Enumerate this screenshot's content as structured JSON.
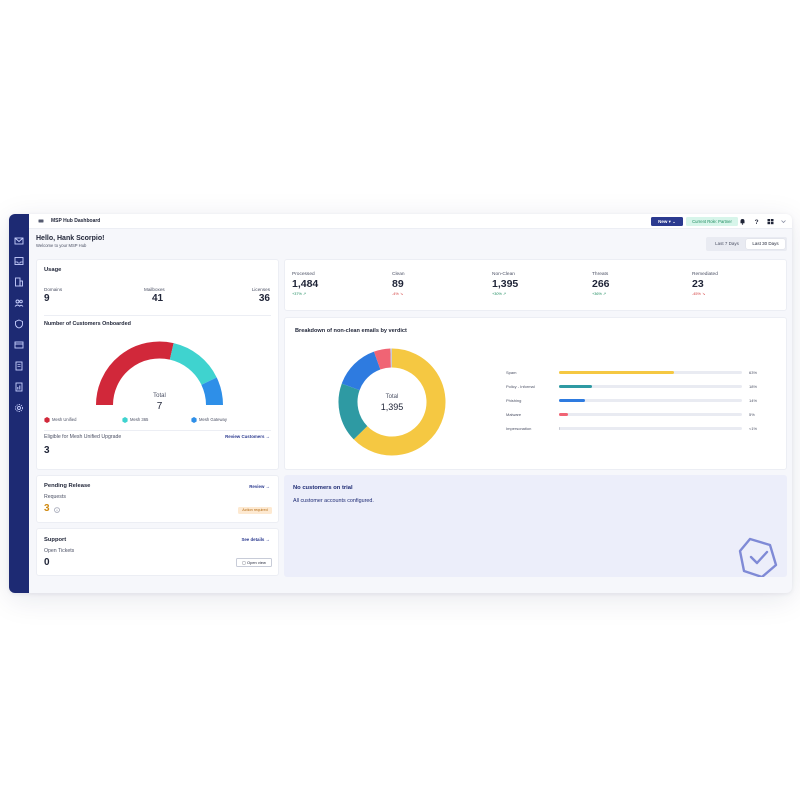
{
  "header": {
    "title": "MSP Hub Dashboard",
    "new_label": "New",
    "role_label": "Current Role: Partner",
    "home_icon": "home-icon",
    "bell_icon": "bell-icon",
    "help_icon": "help-icon",
    "apps_icon": "apps-icon"
  },
  "sidebar": {
    "icons": [
      "mail-icon",
      "inbox-icon",
      "building-icon",
      "users-icon",
      "shield-icon",
      "card-icon",
      "document-icon",
      "report-icon",
      "gear-icon"
    ]
  },
  "greeting": {
    "title": "Hello, Hank Scorpio!",
    "subtitle": "Welcome to your MSP Hub"
  },
  "date_range": {
    "options": [
      "Last 7 Days",
      "Last 30 Days"
    ],
    "selected": "Last 30 Days"
  },
  "usage": {
    "title": "Usage",
    "items": [
      {
        "label": "Domains",
        "value": "9"
      },
      {
        "label": "Mailboxes",
        "value": "41"
      },
      {
        "label": "Licenses",
        "value": "36"
      }
    ]
  },
  "onboarded": {
    "title": "Number of Customers Onboarded",
    "total_label": "Total",
    "total_value": "7",
    "legend": [
      {
        "name": "Mesh Unified",
        "color": "#d1283a"
      },
      {
        "name": "Mesh 365",
        "color": "#3fd3cf"
      },
      {
        "name": "Mesh Gateway",
        "color": "#2e8fe8"
      }
    ],
    "eligible_label": "Eligible for Mesh Unified Upgrade",
    "eligible_value": "3",
    "review_link": "Review Customers →"
  },
  "pending": {
    "title": "Pending Release",
    "review_link": "Review →",
    "requests_label": "Requests",
    "requests_value": "3",
    "badge": "Action required"
  },
  "support": {
    "title": "Support",
    "details_link": "See details →",
    "tickets_label": "Open Tickets",
    "tickets_value": "0",
    "open_view": "Open view"
  },
  "stats": [
    {
      "label": "Processed",
      "value": "1,484",
      "delta": "+37%",
      "dir": "up"
    },
    {
      "label": "Clean",
      "value": "89",
      "delta": "-4%",
      "dir": "down"
    },
    {
      "label": "Non-Clean",
      "value": "1,395",
      "delta": "+30%",
      "dir": "up"
    },
    {
      "label": "Threats",
      "value": "266",
      "delta": "+36%",
      "dir": "up"
    },
    {
      "label": "Remediated",
      "value": "23",
      "delta": "-45%",
      "dir": "down"
    }
  ],
  "breakdown": {
    "title": "Breakdown of non-clean emails by verdict",
    "total_label": "Total",
    "total_value": "1,395"
  },
  "trial": {
    "title": "No customers on trial",
    "subtitle": "All customer accounts configured."
  },
  "chart_data": [
    {
      "type": "pie",
      "title": "Number of Customers Onboarded",
      "categories": [
        "Mesh Unified",
        "Mesh 365",
        "Mesh Gateway"
      ],
      "values": [
        4,
        2,
        1
      ],
      "colors": [
        "#d1283a",
        "#3fd3cf",
        "#2e8fe8"
      ]
    },
    {
      "type": "pie",
      "title": "Breakdown of non-clean emails by verdict",
      "categories": [
        "Spam",
        "Policy - Informal",
        "Phishing",
        "Malware",
        "Impersonation"
      ],
      "values": [
        63,
        18,
        14,
        5,
        0.5
      ],
      "colors": [
        "#f5c842",
        "#2e9aa3",
        "#2e7be0",
        "#f06474",
        "#c9ccd6"
      ]
    },
    {
      "type": "bar",
      "categories": [
        "Spam",
        "Policy - Informal",
        "Phishing",
        "Malware",
        "Impersonation"
      ],
      "values": [
        63,
        18,
        14,
        5,
        0.5
      ],
      "labels": [
        "63%",
        "18%",
        "14%",
        "5%",
        "<1%"
      ],
      "colors": [
        "#f5c842",
        "#2e9aa3",
        "#2e7be0",
        "#f06474",
        "#c9ccd6"
      ],
      "xlim": [
        0,
        100
      ]
    }
  ]
}
